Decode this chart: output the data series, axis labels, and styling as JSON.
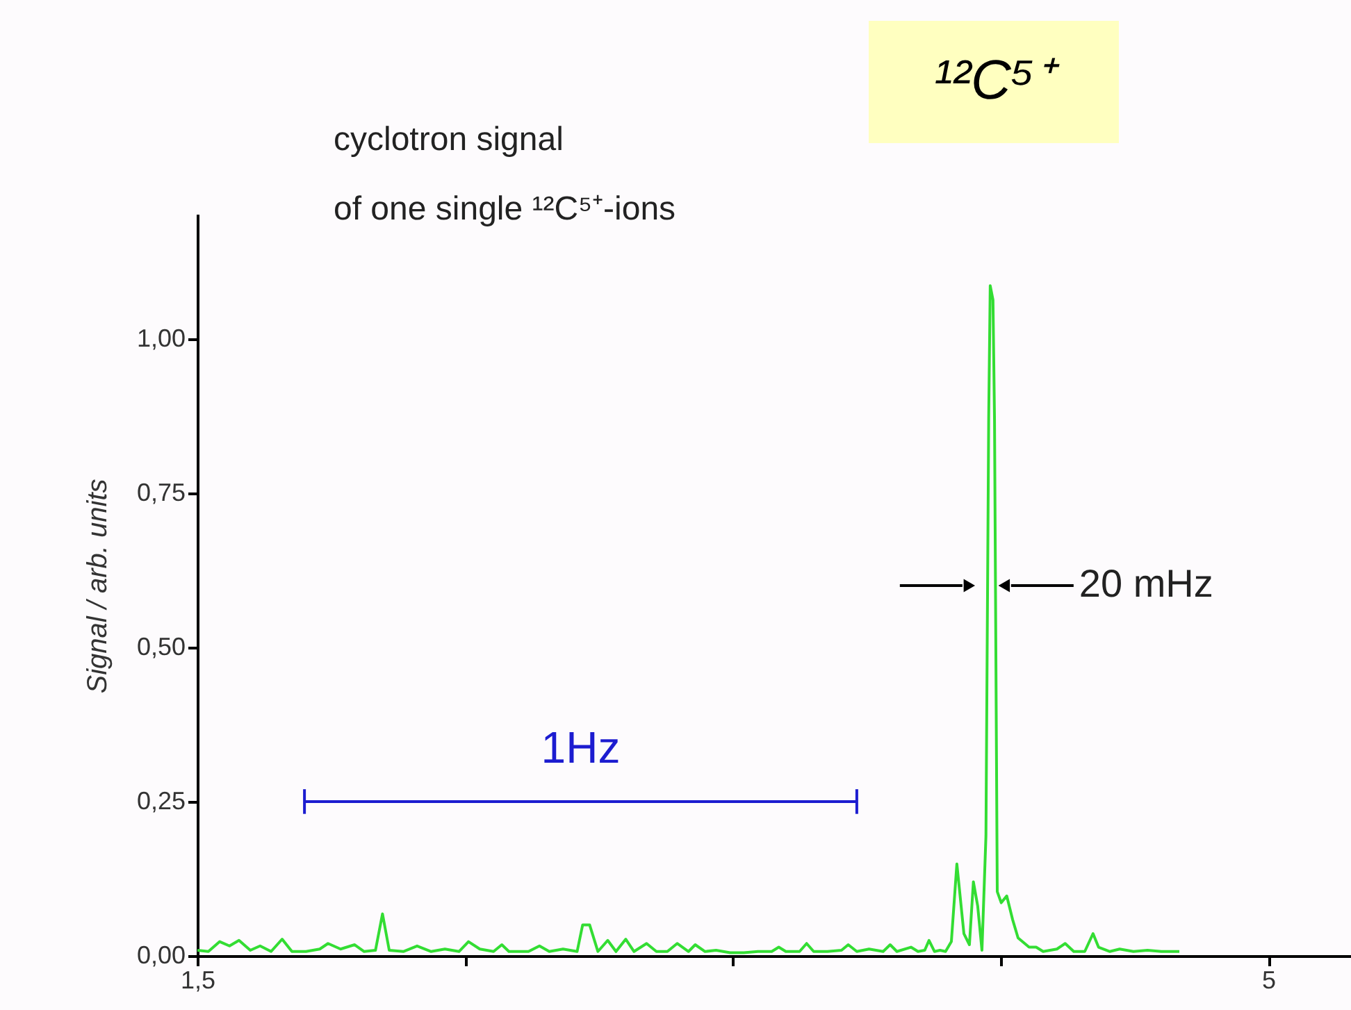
{
  "chart_data": {
    "type": "line",
    "title": "cyclotron signal",
    "subtitle": "of one single ¹²C⁵⁺-ions",
    "ylabel": "Signal / arb. units",
    "annotations": [
      "¹²C⁵⁺",
      {
        "text": "20 mHz",
        "x": 4.1,
        "y": 0.6
      }
    ],
    "x": [
      1.5,
      1.536,
      1.573,
      1.605,
      1.636,
      1.673,
      1.705,
      1.741,
      1.777,
      1.809,
      1.855,
      1.9,
      1.927,
      1.968,
      2.014,
      2.045,
      2.082,
      2.105,
      2.127,
      2.173,
      2.218,
      2.264,
      2.309,
      2.355,
      2.386,
      2.423,
      2.468,
      2.495,
      2.518,
      2.582,
      2.618,
      2.65,
      2.695,
      2.741,
      2.759,
      2.782,
      2.809,
      2.841,
      2.868,
      2.9,
      2.927,
      2.968,
      3.0,
      3.036,
      3.068,
      3.105,
      3.127,
      3.159,
      3.195,
      3.241,
      3.286,
      3.332,
      3.377,
      3.4,
      3.423,
      3.468,
      3.491,
      3.514,
      3.559,
      3.605,
      3.627,
      3.655,
      3.695,
      3.741,
      3.764,
      3.786,
      3.832,
      3.855,
      3.877,
      3.891,
      3.909,
      3.927,
      3.945,
      3.964,
      3.982,
      4.005,
      4.023,
      4.036,
      4.05,
      4.064,
      4.077,
      4.086,
      4.091,
      4.1,
      4.105,
      4.114,
      4.127,
      4.145,
      4.164,
      4.182,
      4.218,
      4.241,
      4.264,
      4.309,
      4.336,
      4.364,
      4.4,
      4.427,
      4.445,
      4.482,
      4.514,
      4.559,
      4.605,
      4.65,
      4.709
    ],
    "series": [
      {
        "color": "#33dd33",
        "values": [
          0.009,
          0.007,
          0.023,
          0.016,
          0.025,
          0.009,
          0.016,
          0.007,
          0.027,
          0.007,
          0.007,
          0.011,
          0.02,
          0.011,
          0.018,
          0.007,
          0.009,
          0.068,
          0.009,
          0.007,
          0.016,
          0.007,
          0.011,
          0.007,
          0.023,
          0.011,
          0.007,
          0.018,
          0.007,
          0.007,
          0.016,
          0.007,
          0.011,
          0.007,
          0.05,
          0.05,
          0.007,
          0.025,
          0.007,
          0.027,
          0.007,
          0.02,
          0.007,
          0.007,
          0.02,
          0.007,
          0.018,
          0.007,
          0.009,
          0.005,
          0.005,
          0.007,
          0.007,
          0.014,
          0.007,
          0.007,
          0.02,
          0.007,
          0.007,
          0.009,
          0.018,
          0.007,
          0.011,
          0.007,
          0.018,
          0.007,
          0.014,
          0.007,
          0.009,
          0.025,
          0.007,
          0.009,
          0.007,
          0.023,
          0.149,
          0.036,
          0.018,
          0.12,
          0.081,
          0.009,
          0.194,
          0.871,
          1.086,
          1.063,
          0.871,
          0.104,
          0.086,
          0.097,
          0.059,
          0.029,
          0.014,
          0.014,
          0.007,
          0.011,
          0.02,
          0.007,
          0.007,
          0.036,
          0.014,
          0.007,
          0.011,
          0.007,
          0.009,
          0.007,
          0.007
        ]
      },
      {
        "type": "line",
        "name": "1Hz",
        "color": "#1c1cd0",
        "x": [
          1.85,
          3.655
        ],
        "values": [
          0.25,
          0.25
        ],
        "errors": [
          0.02,
          0.02
        ]
      }
    ],
    "xlim": [
      1.5,
      5.27
    ],
    "xticks": [
      {
        "value": 1.5,
        "label": "1,5"
      },
      {
        "value": 2.375,
        "label": null
      },
      {
        "value": 3.25,
        "label": null
      },
      {
        "value": 4.125,
        "label": null
      },
      {
        "value": 5,
        "label": "5"
      }
    ],
    "ylim": [
      0,
      1.2
    ],
    "yticks": [
      {
        "value": 0,
        "label": "0,00"
      },
      {
        "value": 0.25,
        "label": "0,25"
      },
      {
        "value": 0.5,
        "label": "0,50"
      },
      {
        "value": 0.75,
        "label": "0,75"
      },
      {
        "value": 1.0,
        "label": "1,00"
      }
    ],
    "grid": false,
    "marker": "none",
    "line_style": "solid"
  }
}
